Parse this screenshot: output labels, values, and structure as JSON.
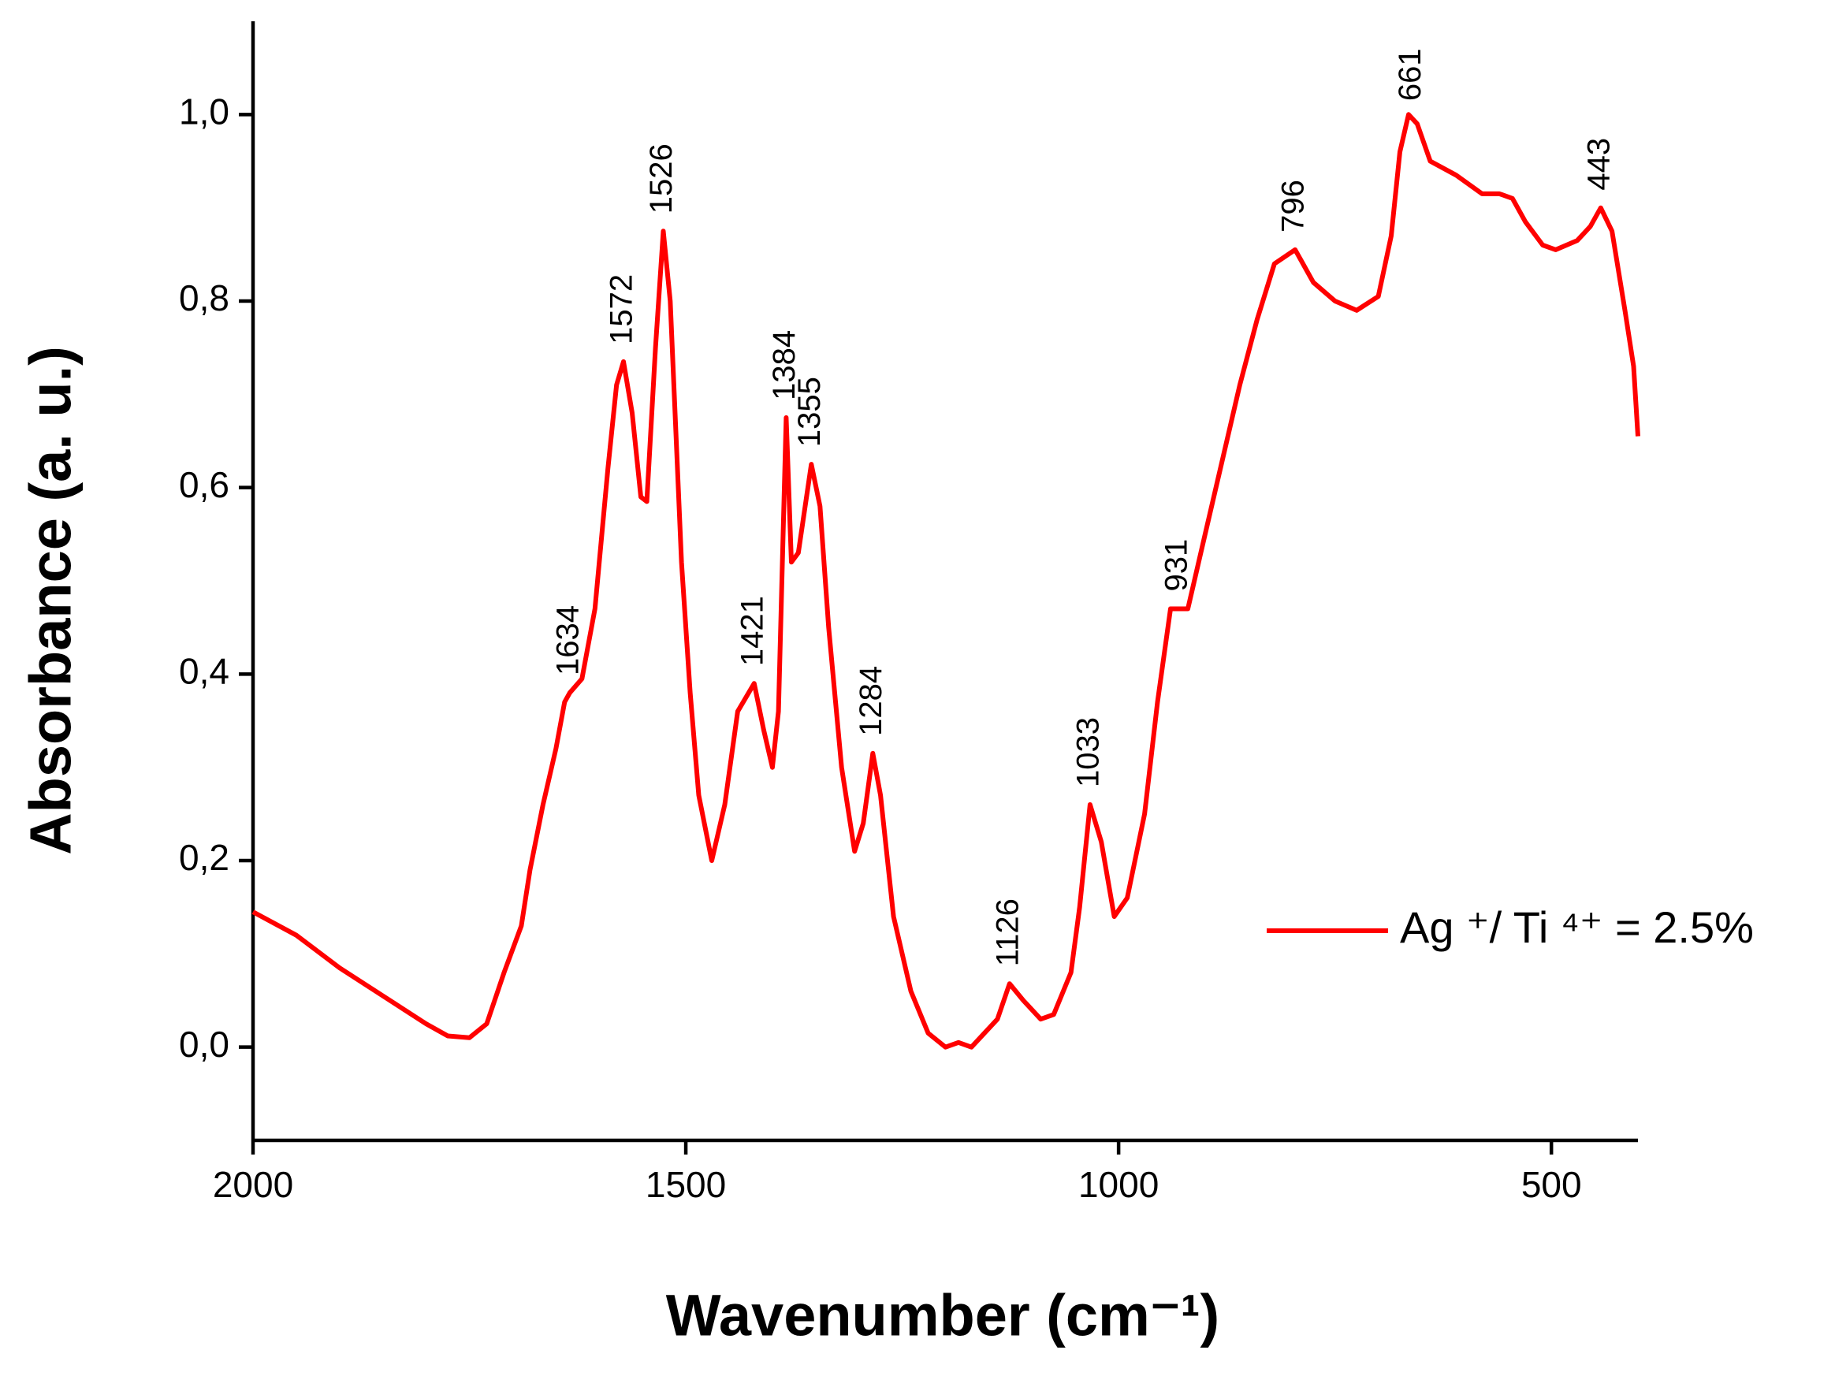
{
  "chart_data": {
    "type": "line",
    "xlabel": "Wavenumber (cm⁻¹)",
    "ylabel": "Absorbance (a. u.)",
    "xlim": [
      2000,
      400
    ],
    "ylim": [
      -0.1,
      1.1
    ],
    "xticks": [
      2000,
      1500,
      1000,
      500
    ],
    "yticks": [
      {
        "value": 0.0,
        "label": "0,0"
      },
      {
        "value": 0.2,
        "label": "0,2"
      },
      {
        "value": 0.4,
        "label": "0,4"
      },
      {
        "value": 0.6,
        "label": "0,6"
      },
      {
        "value": 0.8,
        "label": "0,8"
      },
      {
        "value": 1.0,
        "label": "1,0"
      }
    ],
    "legend": "center right",
    "annotations": [
      "1634",
      "1572",
      "1526",
      "1421",
      "1384",
      "1355",
      "1284",
      "1126",
      "1033",
      "931",
      "796",
      "661",
      "443"
    ],
    "series": [
      {
        "name": "Ag ⁺/  Ti ⁴⁺ = 2.5%",
        "color": "#ff0000",
        "x": [
          2000,
          1950,
          1900,
          1850,
          1800,
          1775,
          1750,
          1730,
          1710,
          1690,
          1680,
          1665,
          1650,
          1640,
          1634,
          1620,
          1605,
          1590,
          1580,
          1572,
          1562,
          1552,
          1545,
          1535,
          1526,
          1518,
          1505,
          1495,
          1485,
          1470,
          1455,
          1440,
          1421,
          1410,
          1400,
          1393,
          1384,
          1378,
          1370,
          1355,
          1345,
          1335,
          1320,
          1305,
          1295,
          1284,
          1275,
          1260,
          1240,
          1220,
          1200,
          1185,
          1170,
          1155,
          1140,
          1126,
          1110,
          1090,
          1075,
          1055,
          1045,
          1033,
          1020,
          1005,
          990,
          970,
          955,
          940,
          931,
          920,
          900,
          880,
          860,
          840,
          820,
          796,
          775,
          750,
          725,
          700,
          685,
          675,
          665,
          655,
          640,
          610,
          580,
          560,
          545,
          530,
          510,
          495,
          470,
          455,
          443,
          430,
          415,
          405,
          400
        ],
        "values": [
          0.145,
          0.12,
          0.085,
          0.055,
          0.025,
          0.012,
          0.01,
          0.025,
          0.08,
          0.13,
          0.19,
          0.26,
          0.32,
          0.37,
          0.38,
          0.395,
          0.47,
          0.62,
          0.71,
          0.735,
          0.68,
          0.59,
          0.585,
          0.75,
          0.875,
          0.8,
          0.52,
          0.38,
          0.27,
          0.2,
          0.26,
          0.36,
          0.39,
          0.34,
          0.3,
          0.36,
          0.675,
          0.52,
          0.53,
          0.625,
          0.58,
          0.45,
          0.3,
          0.21,
          0.24,
          0.315,
          0.27,
          0.14,
          0.06,
          0.015,
          0.0,
          0.005,
          0.0,
          0.015,
          0.03,
          0.068,
          0.05,
          0.03,
          0.035,
          0.08,
          0.15,
          0.26,
          0.22,
          0.14,
          0.16,
          0.25,
          0.37,
          0.47,
          0.47,
          0.47,
          0.55,
          0.63,
          0.71,
          0.78,
          0.84,
          0.855,
          0.82,
          0.8,
          0.79,
          0.805,
          0.87,
          0.96,
          1.0,
          0.99,
          0.95,
          0.935,
          0.915,
          0.915,
          0.91,
          0.885,
          0.86,
          0.855,
          0.865,
          0.88,
          0.9,
          0.875,
          0.79,
          0.73,
          0.655
        ]
      }
    ]
  }
}
